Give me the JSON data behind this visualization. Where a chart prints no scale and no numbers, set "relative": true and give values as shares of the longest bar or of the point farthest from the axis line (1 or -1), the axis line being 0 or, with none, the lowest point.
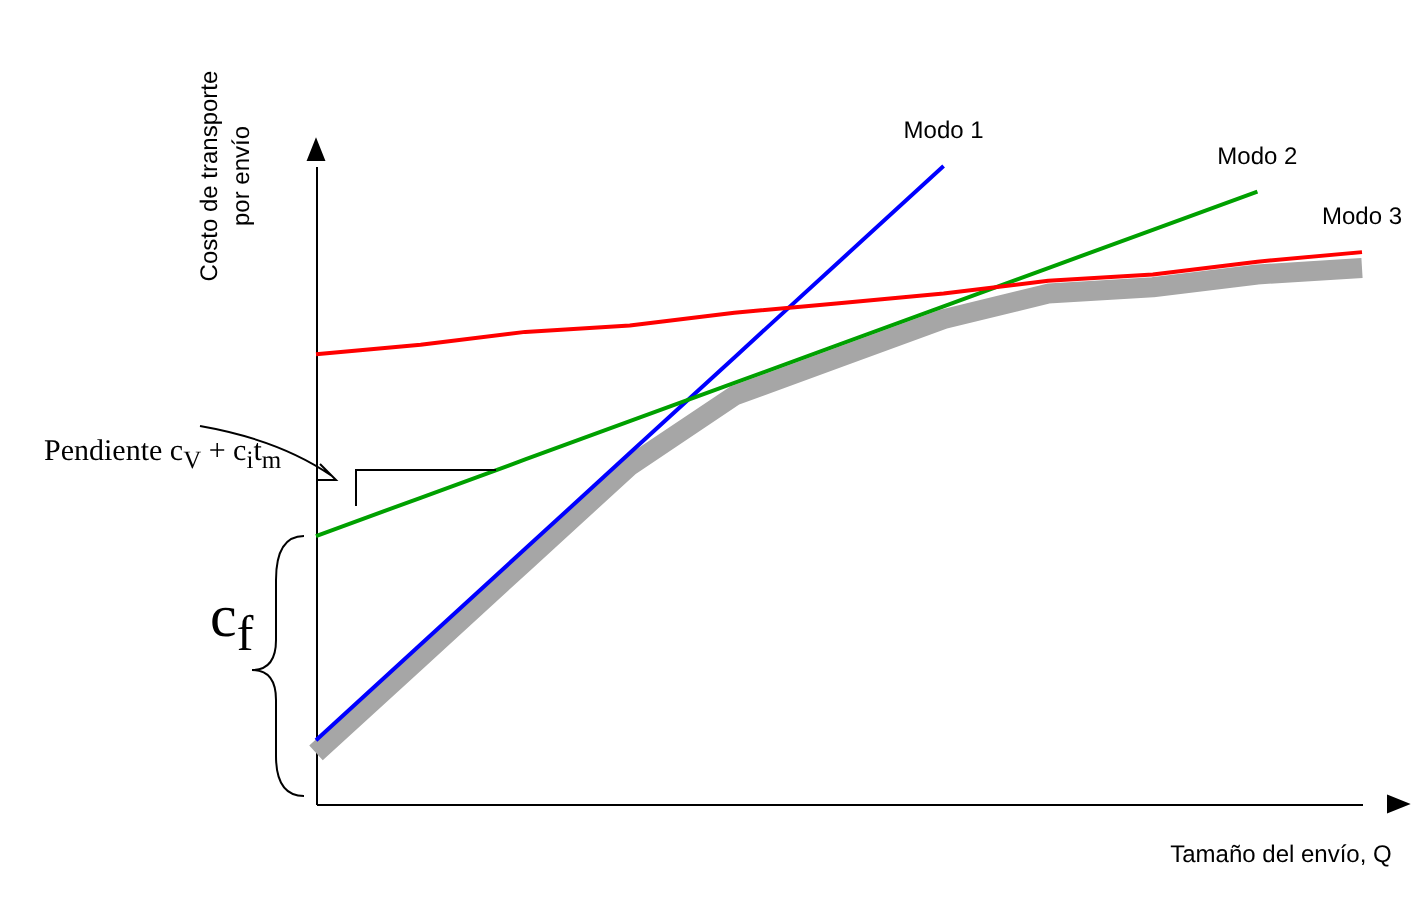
{
  "chart_data": {
    "type": "line",
    "relative": true,
    "xlabel": "Tamaño del envío, Q",
    "ylabel": "Costo de transporte por envío",
    "categories": [
      null,
      null,
      null,
      null,
      null,
      null,
      null,
      null,
      null,
      null,
      null
    ],
    "series": [
      {
        "color": "#a6a6a6",
        "values": [
          0.08,
          0.23,
          0.38,
          0.53,
          0.64,
          0.7,
          0.76,
          0.8,
          0.81,
          0.83,
          0.84
        ]
      },
      {
        "name": "Modo 1",
        "color": "#0000ff",
        "values": [
          0.1,
          0.25,
          0.4,
          0.55,
          0.7,
          0.85,
          1.0,
          null,
          null,
          null,
          null
        ]
      },
      {
        "name": "Modo 2",
        "color": "#00a000",
        "values": [
          0.42,
          0.48,
          0.54,
          0.6,
          0.66,
          0.72,
          0.78,
          0.84,
          0.9,
          0.96,
          null
        ]
      },
      {
        "name": "Modo 3",
        "color": "#ff0000",
        "values": [
          0.705,
          0.72,
          0.74,
          0.75,
          0.77,
          0.785,
          0.8,
          0.82,
          0.83,
          0.85,
          0.865
        ]
      }
    ],
    "annotations": [
      "Pendiente c$_{V}$ + c$_{i}$t$_{m}$",
      "c$_{f}$"
    ],
    "legend": false,
    "grid": false,
    "marker": "none",
    "line_style": "solid"
  }
}
